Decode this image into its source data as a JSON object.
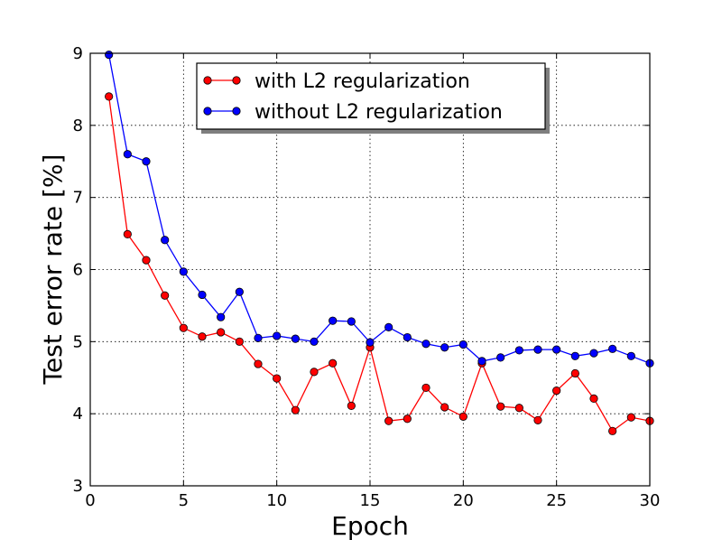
{
  "chart_data": {
    "type": "line",
    "xlabel": "Epoch",
    "ylabel": "Test error rate [%]",
    "xlim": [
      0,
      30
    ],
    "ylim": [
      3,
      9
    ],
    "xticks": [
      0,
      5,
      10,
      15,
      20,
      25,
      30
    ],
    "yticks": [
      3,
      4,
      5,
      6,
      7,
      8,
      9
    ],
    "grid": true,
    "legend_position": "top-center",
    "x": [
      1,
      2,
      3,
      4,
      5,
      6,
      7,
      8,
      9,
      10,
      11,
      12,
      13,
      14,
      15,
      16,
      17,
      18,
      19,
      20,
      21,
      22,
      23,
      24,
      25,
      26,
      27,
      28,
      29,
      30
    ],
    "series": [
      {
        "name": "with L2 regularization",
        "color": "#ff0000",
        "values": [
          8.4,
          6.49,
          6.13,
          5.64,
          5.19,
          5.07,
          5.13,
          5.0,
          4.69,
          4.49,
          4.05,
          4.58,
          4.7,
          4.11,
          4.92,
          3.9,
          3.93,
          4.36,
          4.09,
          3.96,
          4.7,
          4.1,
          4.08,
          3.91,
          4.32,
          4.56,
          4.21,
          3.76,
          3.95,
          3.9
        ]
      },
      {
        "name": "without L2 regularization",
        "color": "#0000ff",
        "values": [
          8.98,
          7.6,
          7.5,
          6.41,
          5.97,
          5.65,
          5.34,
          5.69,
          5.05,
          5.08,
          5.04,
          5.0,
          5.29,
          5.28,
          4.99,
          5.2,
          5.06,
          4.97,
          4.92,
          4.96,
          4.73,
          4.78,
          4.88,
          4.89,
          4.89,
          4.8,
          4.84,
          4.9,
          4.8,
          4.7
        ]
      }
    ]
  }
}
